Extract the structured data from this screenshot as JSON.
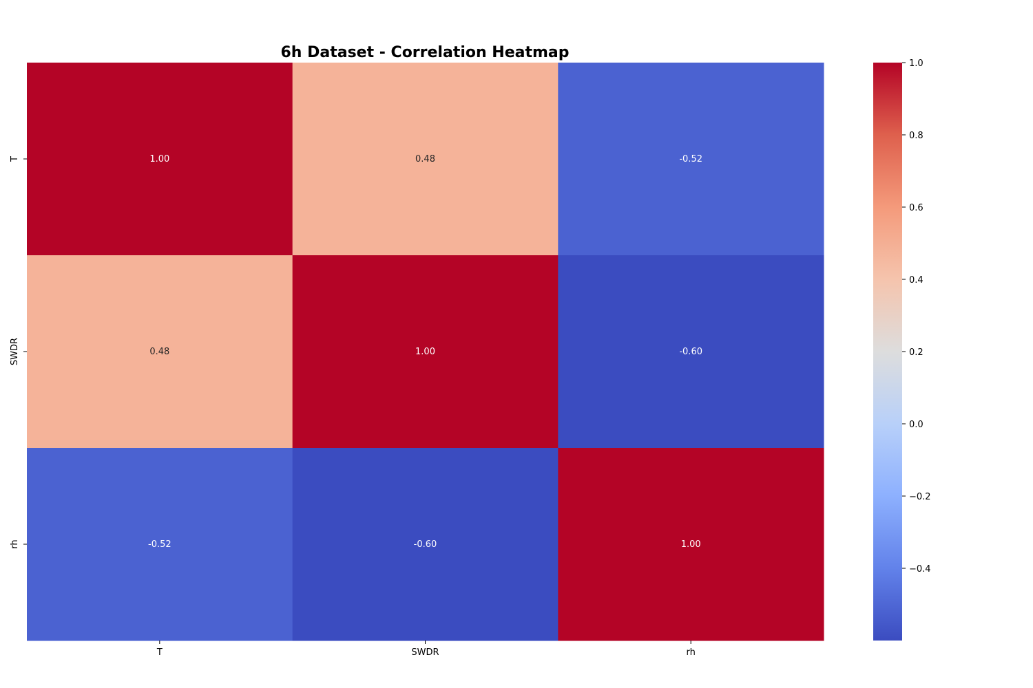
{
  "chart_data": {
    "type": "heatmap",
    "title": "6h Dataset - Correlation Heatmap",
    "x_categories": [
      "T",
      "SWDR",
      "rh"
    ],
    "y_categories": [
      "T",
      "SWDR",
      "rh"
    ],
    "matrix": [
      [
        1.0,
        0.48,
        -0.52
      ],
      [
        0.48,
        1.0,
        -0.6
      ],
      [
        -0.52,
        -0.6,
        1.0
      ]
    ],
    "cell_labels": [
      [
        "1.00",
        "0.48",
        "-0.52"
      ],
      [
        "0.48",
        "1.00",
        "-0.60"
      ],
      [
        "-0.52",
        "-0.60",
        "1.00"
      ]
    ],
    "colormap": "coolwarm",
    "vmin": -0.6,
    "vmax": 1.0,
    "colorbar": {
      "ticks": [
        1.0,
        0.8,
        0.6,
        0.4,
        0.2,
        0.0,
        -0.2,
        -0.4
      ],
      "tick_labels": [
        "1.0",
        "0.8",
        "0.6",
        "0.4",
        "0.2",
        "0.0",
        "−0.2",
        "−0.4"
      ],
      "placement": "right"
    },
    "xlabel": "",
    "ylabel": ""
  }
}
